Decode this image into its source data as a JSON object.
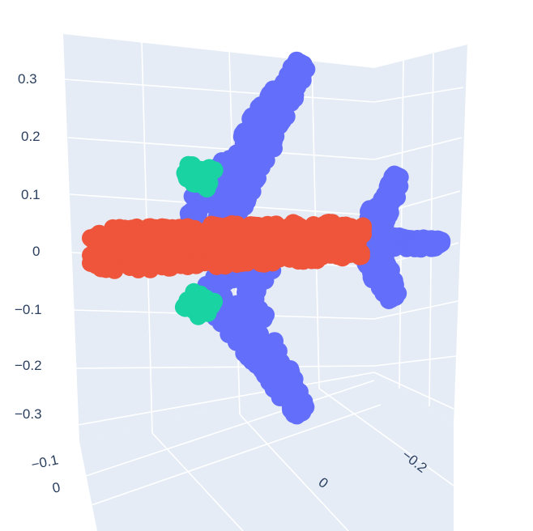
{
  "chart_data": {
    "type": "scatter3d",
    "title": "",
    "axes": {
      "z": {
        "label": "",
        "ticks": [
          "0.3",
          "0.2",
          "0.1",
          "0",
          "−0.1",
          "−0.2",
          "−0.3"
        ]
      },
      "y": {
        "label": "",
        "ticks": [
          "−0.1",
          "0"
        ]
      },
      "x": {
        "label": "",
        "ticks": [
          "0",
          "−0.2"
        ]
      }
    },
    "background_color": "#e5ecf6",
    "grid": true,
    "series": [
      {
        "part": "wings and tail",
        "color": "#636efa"
      },
      {
        "part": "engines",
        "color": "#19d3a2"
      },
      {
        "part": "fuselage",
        "color": "#ef553b"
      }
    ]
  }
}
